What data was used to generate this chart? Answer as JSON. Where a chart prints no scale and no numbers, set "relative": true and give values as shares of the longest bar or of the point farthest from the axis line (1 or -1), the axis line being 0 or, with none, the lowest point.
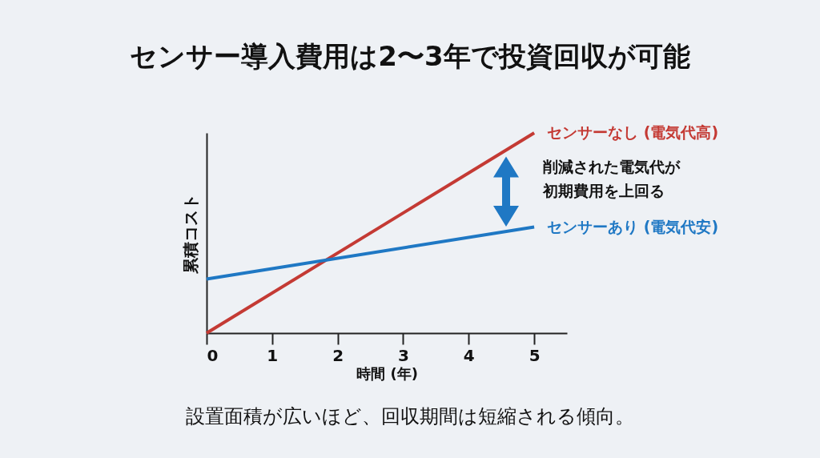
{
  "chart_data": {
    "type": "line",
    "title": "センサー導入費用は2〜3年で投資回収が可能",
    "xlabel": "時間 (年)",
    "ylabel": "累積コスト",
    "relative": true,
    "x": [
      0,
      5
    ],
    "xlim": [
      0,
      5.5
    ],
    "xticks": [
      0,
      1,
      2,
      3,
      4,
      5
    ],
    "series": [
      {
        "name": "センサーなし (電気代高)",
        "color": "#c43a34",
        "values": [
          0,
          1
        ]
      },
      {
        "name": "センサーあり (電気代安)",
        "color": "#1f78c4",
        "values": [
          0.27,
          0.53
        ]
      }
    ],
    "annotations": [
      "削減された電気代が初期費用を上回る",
      "設置面積が広いほど、回収期間は短縮される傾向。"
    ],
    "grid": false,
    "legend": false,
    "marker": "none",
    "line_style": "solid"
  }
}
